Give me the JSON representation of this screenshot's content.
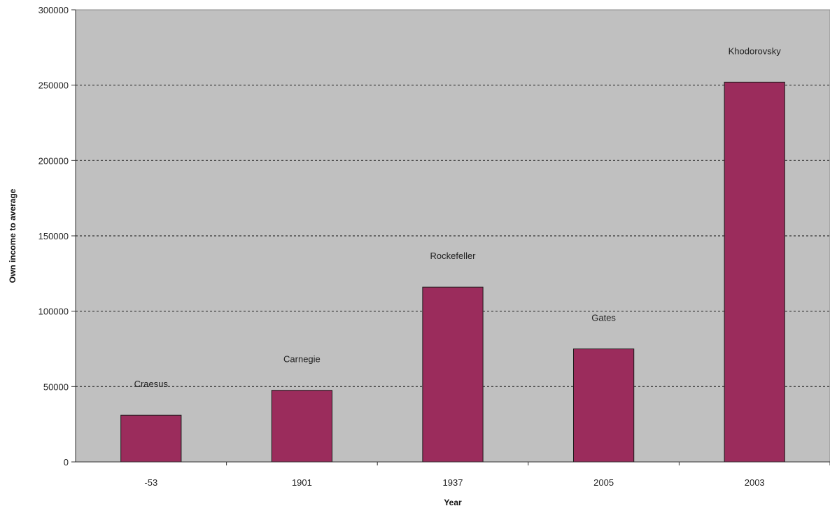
{
  "chart_data": {
    "type": "bar",
    "categories": [
      "-53",
      "1901",
      "1937",
      "2005",
      "2003"
    ],
    "labels": [
      "Craesus",
      "Carnegie",
      "Rockefeller",
      "Gates",
      "Khodorovsky"
    ],
    "values": [
      31000,
      47500,
      116000,
      75000,
      252000
    ],
    "xlabel": "Year",
    "ylabel": "Own income to average",
    "ylim": [
      0,
      300000
    ],
    "yticks": [
      "0",
      "50000",
      "100000",
      "150000",
      "200000",
      "250000",
      "300000"
    ],
    "grid": true,
    "legend": "none",
    "colors": {
      "bar": "#9b2c5c",
      "plot_background": "#c0c0c0",
      "gridline": "#333333"
    }
  }
}
